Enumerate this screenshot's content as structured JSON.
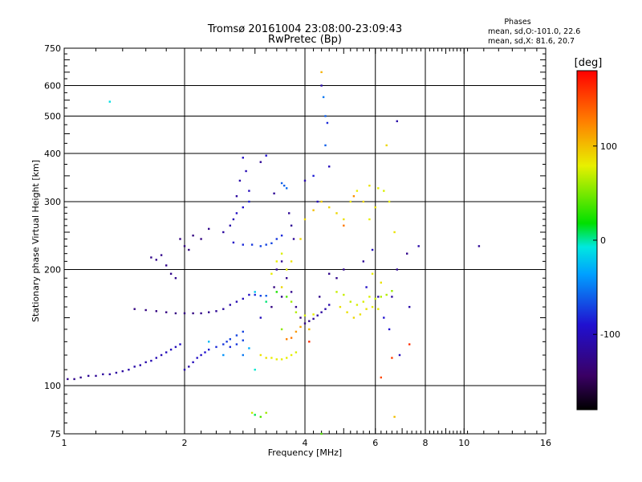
{
  "chart_data": {
    "type": "scatter",
    "title": "Tromsø 20161004 23:08:00-23:09:43",
    "subtitle": "RwPretec (Bp)",
    "xlabel": "Frequency [MHz]",
    "ylabel": "Stationary phase Virtual Height [km]",
    "x_scale": "log",
    "y_scale": "log",
    "xlim": [
      1,
      16
    ],
    "ylim": [
      75,
      750
    ],
    "x_ticks": [
      1,
      2,
      4,
      6,
      8,
      10,
      16
    ],
    "x_tick_labels": [
      "1",
      "2",
      "4",
      "6",
      "8",
      "10",
      "16"
    ],
    "y_ticks": [
      75,
      100,
      200,
      300,
      400,
      500,
      600,
      750
    ],
    "y_tick_labels": [
      "75",
      "100",
      "200",
      "300",
      "400",
      "500",
      "600",
      "750"
    ],
    "grid": true,
    "info": {
      "heading": "Phases",
      "line1": "mean, sd,O:-101.0, 22.6",
      "line2": "mean, sd,X:  81.6, 20.7"
    },
    "colorbar": {
      "label": "[deg]",
      "range": [
        -180,
        180
      ],
      "ticks": [
        100,
        0,
        -100
      ],
      "tick_labels": [
        "100",
        "0",
        "-100"
      ]
    },
    "series": [
      {
        "points": [
          [
            1.02,
            104,
            -125
          ],
          [
            1.06,
            104,
            -125
          ],
          [
            1.1,
            105,
            -125
          ],
          [
            1.15,
            106,
            -120
          ],
          [
            1.2,
            106,
            -120
          ],
          [
            1.25,
            107,
            -115
          ],
          [
            1.3,
            107,
            -115
          ],
          [
            1.35,
            108,
            -115
          ],
          [
            1.4,
            109,
            -115
          ],
          [
            1.45,
            110,
            -110
          ],
          [
            1.5,
            112,
            -110
          ],
          [
            1.55,
            113,
            -110
          ],
          [
            1.6,
            115,
            -110
          ],
          [
            1.65,
            116,
            -105
          ],
          [
            1.7,
            118,
            -105
          ],
          [
            1.75,
            120,
            -105
          ],
          [
            1.8,
            122,
            -100
          ],
          [
            1.85,
            124,
            -100
          ],
          [
            1.9,
            126,
            -100
          ],
          [
            1.95,
            128,
            -95
          ],
          [
            2.0,
            110,
            -110
          ],
          [
            2.05,
            112,
            -110
          ],
          [
            2.1,
            115,
            -100
          ],
          [
            2.15,
            118,
            -95
          ],
          [
            2.2,
            120,
            -95
          ],
          [
            2.25,
            122,
            -90
          ],
          [
            2.3,
            124,
            -85
          ],
          [
            2.4,
            126,
            -80
          ],
          [
            2.5,
            128,
            -75
          ],
          [
            2.55,
            130,
            -75
          ],
          [
            2.6,
            132,
            -70
          ],
          [
            2.7,
            135,
            -70
          ],
          [
            2.8,
            138,
            -70
          ],
          [
            2.6,
            126,
            -80
          ],
          [
            2.7,
            128,
            -75
          ],
          [
            2.8,
            131,
            -70
          ],
          [
            1.5,
            158,
            -130
          ],
          [
            1.6,
            157,
            -130
          ],
          [
            1.7,
            156,
            -130
          ],
          [
            1.8,
            155,
            -130
          ],
          [
            1.9,
            154,
            -130
          ],
          [
            2.0,
            154,
            -130
          ],
          [
            2.1,
            154,
            -130
          ],
          [
            2.2,
            154,
            -125
          ],
          [
            2.3,
            155,
            -125
          ],
          [
            2.4,
            156,
            -120
          ],
          [
            2.5,
            158,
            -115
          ],
          [
            2.6,
            162,
            -110
          ],
          [
            2.7,
            165,
            -105
          ],
          [
            2.8,
            168,
            -100
          ],
          [
            2.9,
            172,
            -95
          ],
          [
            3.0,
            172,
            -80
          ],
          [
            3.1,
            171,
            -70
          ],
          [
            3.2,
            171,
            -60
          ],
          [
            1.65,
            215,
            -125
          ],
          [
            1.7,
            212,
            -125
          ],
          [
            1.75,
            218,
            -125
          ],
          [
            1.8,
            205,
            -125
          ],
          [
            1.85,
            195,
            -125
          ],
          [
            1.9,
            190,
            -125
          ],
          [
            1.95,
            240,
            -130
          ],
          [
            2.0,
            230,
            -130
          ],
          [
            2.05,
            225,
            -130
          ],
          [
            2.1,
            245,
            -130
          ],
          [
            2.2,
            240,
            -130
          ],
          [
            2.3,
            255,
            -125
          ],
          [
            2.5,
            250,
            -115
          ],
          [
            2.6,
            260,
            -110
          ],
          [
            2.65,
            270,
            -105
          ],
          [
            2.7,
            280,
            -95
          ],
          [
            2.8,
            290,
            -90
          ],
          [
            2.9,
            300,
            -85
          ],
          [
            2.75,
            340,
            -110
          ],
          [
            2.85,
            360,
            -105
          ],
          [
            2.9,
            320,
            -100
          ],
          [
            2.7,
            310,
            -115
          ],
          [
            2.65,
            235,
            -95
          ],
          [
            2.8,
            232,
            -80
          ],
          [
            2.95,
            232,
            -75
          ],
          [
            3.1,
            230,
            -70
          ],
          [
            3.2,
            232,
            -70
          ],
          [
            3.3,
            234,
            -70
          ],
          [
            3.4,
            240,
            -75
          ],
          [
            3.5,
            245,
            -80
          ],
          [
            3.55,
            330,
            -60
          ],
          [
            3.6,
            325,
            -55
          ],
          [
            3.5,
            335,
            -60
          ],
          [
            3.3,
            160,
            -130
          ],
          [
            3.35,
            180,
            -130
          ],
          [
            3.4,
            200,
            -125
          ],
          [
            3.5,
            170,
            -125
          ],
          [
            3.6,
            190,
            -125
          ],
          [
            3.7,
            175,
            -125
          ],
          [
            3.8,
            160,
            -125
          ],
          [
            3.9,
            150,
            -130
          ],
          [
            4.0,
            145,
            -130
          ],
          [
            4.1,
            147,
            -125
          ],
          [
            4.2,
            149,
            -120
          ],
          [
            4.3,
            152,
            -115
          ],
          [
            4.4,
            155,
            -115
          ],
          [
            4.5,
            158,
            -110
          ],
          [
            4.6,
            162,
            -110
          ],
          [
            3.65,
            280,
            -120
          ],
          [
            3.7,
            260,
            -120
          ],
          [
            3.75,
            240,
            -120
          ],
          [
            3.5,
            210,
            -120
          ],
          [
            4.35,
            170,
            -125
          ],
          [
            4.6,
            195,
            -125
          ],
          [
            4.8,
            190,
            -125
          ],
          [
            5.0,
            200,
            -125
          ],
          [
            5.6,
            210,
            -120
          ],
          [
            5.7,
            180,
            -95
          ],
          [
            5.9,
            225,
            -100
          ],
          [
            6.1,
            170,
            -110
          ],
          [
            6.3,
            150,
            -90
          ],
          [
            6.6,
            170,
            -115
          ],
          [
            6.8,
            200,
            -120
          ],
          [
            7.3,
            160,
            -110
          ],
          [
            6.5,
            140,
            -90
          ],
          [
            6.9,
            120,
            -100
          ],
          [
            1.3,
            545,
            -10
          ],
          [
            4.4,
            600,
            -110
          ],
          [
            4.5,
            500,
            -60
          ],
          [
            4.55,
            480,
            -80
          ],
          [
            4.5,
            420,
            -60
          ],
          [
            4.45,
            560,
            -50
          ],
          [
            4.4,
            650,
            105
          ],
          [
            4.6,
            370,
            -100
          ],
          [
            4.2,
            350,
            -85
          ],
          [
            4.0,
            340,
            -110
          ],
          [
            4.3,
            300,
            -100
          ],
          [
            6.8,
            485,
            -110
          ],
          [
            6.4,
            420,
            90
          ],
          [
            7.2,
            220,
            -125
          ],
          [
            7.7,
            230,
            -110
          ],
          [
            10.9,
            230,
            -120
          ],
          [
            3.2,
            395,
            -90
          ],
          [
            2.8,
            390,
            -95
          ],
          [
            3.1,
            380,
            -120
          ],
          [
            3.35,
            315,
            -120
          ],
          [
            3.1,
            150,
            -100
          ],
          [
            3.3,
            195,
            80
          ],
          [
            3.4,
            210,
            80
          ],
          [
            3.5,
            220,
            75
          ],
          [
            3.6,
            200,
            80
          ],
          [
            3.7,
            210,
            85
          ],
          [
            3.5,
            180,
            90
          ],
          [
            3.9,
            240,
            90
          ],
          [
            4.0,
            270,
            90
          ],
          [
            4.2,
            285,
            100
          ],
          [
            4.4,
            300,
            95
          ],
          [
            4.6,
            290,
            90
          ],
          [
            4.8,
            280,
            90
          ],
          [
            5.0,
            270,
            85
          ],
          [
            5.2,
            300,
            85
          ],
          [
            5.4,
            320,
            80
          ],
          [
            5.6,
            300,
            90
          ],
          [
            5.8,
            330,
            85
          ],
          [
            6.1,
            325,
            80
          ],
          [
            6.3,
            320,
            75
          ],
          [
            6.0,
            290,
            85
          ],
          [
            5.8,
            270,
            80
          ],
          [
            6.5,
            300,
            80
          ],
          [
            6.7,
            250,
            85
          ],
          [
            4.8,
            175,
            70
          ],
          [
            5.0,
            172,
            70
          ],
          [
            5.2,
            165,
            70
          ],
          [
            5.4,
            162,
            75
          ],
          [
            5.6,
            165,
            75
          ],
          [
            5.8,
            170,
            75
          ],
          [
            6.0,
            168,
            70
          ],
          [
            6.2,
            170,
            65
          ],
          [
            6.4,
            172,
            65
          ],
          [
            6.6,
            176,
            60
          ],
          [
            4.9,
            160,
            85
          ],
          [
            5.1,
            155,
            85
          ],
          [
            5.3,
            150,
            90
          ],
          [
            5.5,
            153,
            85
          ],
          [
            5.7,
            158,
            85
          ],
          [
            5.9,
            160,
            80
          ],
          [
            6.1,
            158,
            80
          ],
          [
            6.2,
            185,
            85
          ],
          [
            5.9,
            195,
            80
          ],
          [
            3.3,
            118,
            80
          ],
          [
            3.4,
            117,
            80
          ],
          [
            3.5,
            117,
            80
          ],
          [
            3.6,
            118,
            80
          ],
          [
            3.7,
            120,
            80
          ],
          [
            3.8,
            122,
            75
          ],
          [
            3.1,
            120,
            85
          ],
          [
            3.2,
            118,
            85
          ],
          [
            3.5,
            140,
            55
          ],
          [
            3.6,
            132,
            125
          ],
          [
            3.7,
            133,
            130
          ],
          [
            3.8,
            138,
            115
          ],
          [
            3.9,
            142,
            110
          ],
          [
            4.1,
            140,
            100
          ],
          [
            3.0,
            110,
            -5
          ],
          [
            2.9,
            125,
            -30
          ],
          [
            2.8,
            120,
            -50
          ],
          [
            2.5,
            120,
            -40
          ],
          [
            2.3,
            130,
            -25
          ],
          [
            3.0,
            175,
            -20
          ],
          [
            3.2,
            165,
            5
          ],
          [
            3.4,
            175,
            25
          ],
          [
            3.6,
            170,
            40
          ],
          [
            3.7,
            165,
            60
          ],
          [
            3.8,
            155,
            65
          ],
          [
            4.0,
            152,
            75
          ],
          [
            4.2,
            153,
            80
          ],
          [
            3.0,
            84,
            10
          ],
          [
            3.1,
            83,
            40
          ],
          [
            2.95,
            85,
            70
          ],
          [
            6.7,
            83,
            100
          ],
          [
            6.2,
            105,
            150
          ],
          [
            6.6,
            118,
            155
          ],
          [
            7.3,
            128,
            160
          ],
          [
            4.4,
            75,
            40
          ],
          [
            3.2,
            85,
            60
          ],
          [
            4.1,
            130,
            160
          ],
          [
            5.3,
            310,
            120
          ],
          [
            5.0,
            260,
            130
          ]
        ]
      }
    ]
  }
}
